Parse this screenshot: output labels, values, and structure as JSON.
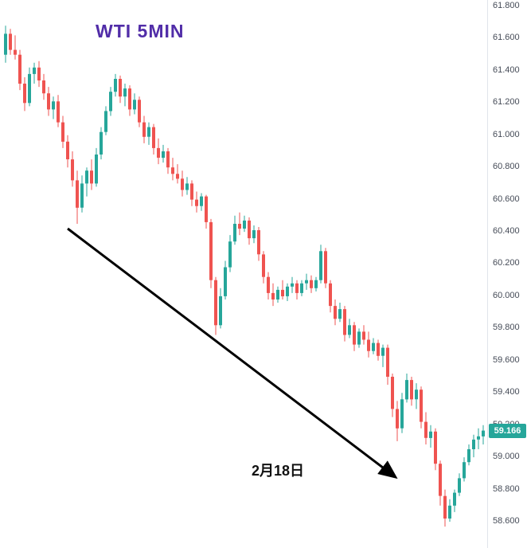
{
  "chart_data": {
    "type": "candlestick",
    "title": "WTI 5MIN",
    "symbol": "WTI",
    "interval": "5MIN",
    "title_color": "#512da8",
    "colors": {
      "up": "#26a69a",
      "down": "#ef5350",
      "axis_text": "#454b57",
      "arrow": "#000000",
      "badge_bg": "#26a69a",
      "badge_text": "#ffffff"
    },
    "ylim": [
      58.6,
      61.8
    ],
    "y_tick_labels": [
      "61.800",
      "61.600",
      "61.400",
      "61.200",
      "61.000",
      "60.800",
      "60.600",
      "60.400",
      "60.200",
      "60.000",
      "59.800",
      "59.600",
      "59.400",
      "59.200",
      "59.000",
      "58.800",
      "58.600"
    ],
    "last_price": "59.166",
    "candles": [
      [
        61.5,
        61.68,
        61.45,
        61.63
      ],
      [
        61.63,
        61.66,
        61.5,
        61.53
      ],
      [
        61.53,
        61.62,
        61.47,
        61.5
      ],
      [
        61.5,
        61.53,
        61.28,
        61.32
      ],
      [
        61.32,
        61.36,
        61.15,
        61.2
      ],
      [
        61.2,
        61.42,
        61.18,
        61.38
      ],
      [
        61.38,
        61.45,
        61.32,
        61.42
      ],
      [
        61.42,
        61.46,
        61.3,
        61.34
      ],
      [
        61.34,
        61.38,
        61.22,
        61.26
      ],
      [
        61.26,
        61.3,
        61.12,
        61.16
      ],
      [
        61.16,
        61.24,
        61.1,
        61.21
      ],
      [
        61.21,
        61.25,
        61.05,
        61.08
      ],
      [
        61.08,
        61.12,
        60.92,
        60.96
      ],
      [
        60.96,
        61.0,
        60.8,
        60.85
      ],
      [
        60.85,
        60.9,
        60.68,
        60.72
      ],
      [
        60.72,
        60.78,
        60.45,
        60.55
      ],
      [
        60.55,
        60.75,
        60.52,
        60.7
      ],
      [
        60.7,
        60.8,
        60.62,
        60.78
      ],
      [
        60.78,
        60.85,
        60.66,
        60.7
      ],
      [
        60.7,
        60.92,
        60.68,
        60.88
      ],
      [
        60.88,
        61.05,
        60.85,
        61.02
      ],
      [
        61.02,
        61.18,
        61.0,
        61.15
      ],
      [
        61.15,
        61.3,
        61.12,
        61.27
      ],
      [
        61.27,
        61.38,
        61.24,
        61.35
      ],
      [
        61.35,
        61.37,
        61.2,
        61.24
      ],
      [
        61.24,
        61.32,
        61.18,
        61.29
      ],
      [
        61.29,
        61.31,
        61.12,
        61.16
      ],
      [
        61.16,
        61.26,
        61.13,
        61.22
      ],
      [
        61.22,
        61.24,
        61.05,
        61.08
      ],
      [
        61.08,
        61.12,
        60.95,
        60.99
      ],
      [
        60.99,
        61.08,
        60.94,
        61.05
      ],
      [
        61.05,
        61.07,
        60.88,
        60.92
      ],
      [
        60.92,
        60.98,
        60.82,
        60.86
      ],
      [
        60.86,
        60.94,
        60.83,
        60.9
      ],
      [
        60.9,
        60.92,
        60.76,
        60.8
      ],
      [
        60.8,
        60.86,
        60.72,
        60.76
      ],
      [
        60.76,
        60.82,
        60.7,
        60.73
      ],
      [
        60.73,
        60.78,
        60.62,
        60.66
      ],
      [
        60.66,
        60.74,
        60.63,
        60.7
      ],
      [
        60.7,
        60.72,
        60.56,
        60.6
      ],
      [
        60.6,
        60.65,
        60.52,
        60.56
      ],
      [
        60.56,
        60.64,
        60.53,
        60.62
      ],
      [
        60.62,
        60.63,
        60.42,
        60.46
      ],
      [
        60.46,
        60.48,
        60.05,
        60.1
      ],
      [
        60.1,
        60.12,
        59.76,
        59.82
      ],
      [
        59.82,
        60.05,
        59.8,
        60.0
      ],
      [
        60.0,
        60.22,
        59.98,
        60.18
      ],
      [
        60.18,
        60.38,
        60.15,
        60.34
      ],
      [
        60.34,
        60.5,
        60.32,
        60.45
      ],
      [
        60.45,
        60.52,
        60.38,
        60.42
      ],
      [
        60.42,
        60.5,
        60.4,
        60.47
      ],
      [
        60.47,
        60.49,
        60.32,
        60.36
      ],
      [
        60.36,
        60.44,
        60.33,
        60.41
      ],
      [
        60.41,
        60.43,
        60.22,
        60.26
      ],
      [
        60.26,
        60.28,
        60.08,
        60.12
      ],
      [
        60.12,
        60.15,
        59.98,
        60.02
      ],
      [
        60.02,
        60.08,
        59.94,
        59.98
      ],
      [
        59.98,
        60.06,
        59.96,
        60.04
      ],
      [
        60.04,
        60.1,
        59.98,
        60.0
      ],
      [
        60.0,
        60.08,
        59.97,
        60.06
      ],
      [
        60.06,
        60.12,
        60.02,
        60.08
      ],
      [
        60.08,
        60.1,
        59.98,
        60.02
      ],
      [
        60.02,
        60.1,
        60.0,
        60.08
      ],
      [
        60.08,
        60.14,
        60.04,
        60.1
      ],
      [
        60.1,
        60.13,
        60.02,
        60.05
      ],
      [
        60.05,
        60.12,
        60.03,
        60.1
      ],
      [
        60.1,
        60.32,
        60.08,
        60.28
      ],
      [
        60.28,
        60.3,
        60.05,
        60.08
      ],
      [
        60.08,
        60.1,
        59.9,
        59.94
      ],
      [
        59.94,
        59.98,
        59.82,
        59.86
      ],
      [
        59.86,
        59.96,
        59.84,
        59.92
      ],
      [
        59.92,
        59.94,
        59.72,
        59.76
      ],
      [
        59.76,
        59.86,
        59.74,
        59.82
      ],
      [
        59.82,
        59.84,
        59.66,
        59.7
      ],
      [
        59.7,
        59.8,
        59.68,
        59.78
      ],
      [
        59.78,
        59.82,
        59.7,
        59.73
      ],
      [
        59.73,
        59.78,
        59.62,
        59.66
      ],
      [
        59.66,
        59.74,
        59.64,
        59.71
      ],
      [
        59.71,
        59.73,
        59.6,
        59.63
      ],
      [
        59.63,
        59.7,
        59.56,
        59.68
      ],
      [
        59.68,
        59.7,
        59.45,
        59.5
      ],
      [
        59.5,
        59.52,
        59.25,
        59.3
      ],
      [
        59.3,
        59.35,
        59.1,
        59.18
      ],
      [
        59.18,
        59.4,
        59.15,
        59.36
      ],
      [
        59.36,
        59.52,
        59.34,
        59.48
      ],
      [
        59.48,
        59.5,
        59.32,
        59.36
      ],
      [
        59.36,
        59.46,
        59.3,
        59.42
      ],
      [
        59.42,
        59.44,
        59.18,
        59.22
      ],
      [
        59.22,
        59.28,
        59.08,
        59.12
      ],
      [
        59.12,
        59.2,
        59.06,
        59.16
      ],
      [
        59.16,
        59.18,
        58.92,
        58.96
      ],
      [
        58.96,
        58.98,
        58.7,
        58.76
      ],
      [
        58.76,
        58.8,
        58.57,
        58.62
      ],
      [
        58.62,
        58.74,
        58.6,
        58.7
      ],
      [
        58.7,
        58.8,
        58.66,
        58.78
      ],
      [
        58.78,
        58.9,
        58.76,
        58.87
      ],
      [
        58.87,
        59.0,
        58.85,
        58.97
      ],
      [
        58.97,
        59.08,
        58.95,
        59.05
      ],
      [
        59.05,
        59.14,
        59.0,
        59.11
      ],
      [
        59.11,
        59.18,
        59.05,
        59.13
      ],
      [
        59.13,
        59.2,
        59.08,
        59.166
      ]
    ],
    "annotations": [
      {
        "type": "text",
        "text": "2月18日"
      },
      {
        "type": "arrow",
        "from": {
          "i": 13,
          "price": 60.42
        },
        "to": {
          "i": 81.5,
          "price": 58.88
        }
      }
    ]
  }
}
